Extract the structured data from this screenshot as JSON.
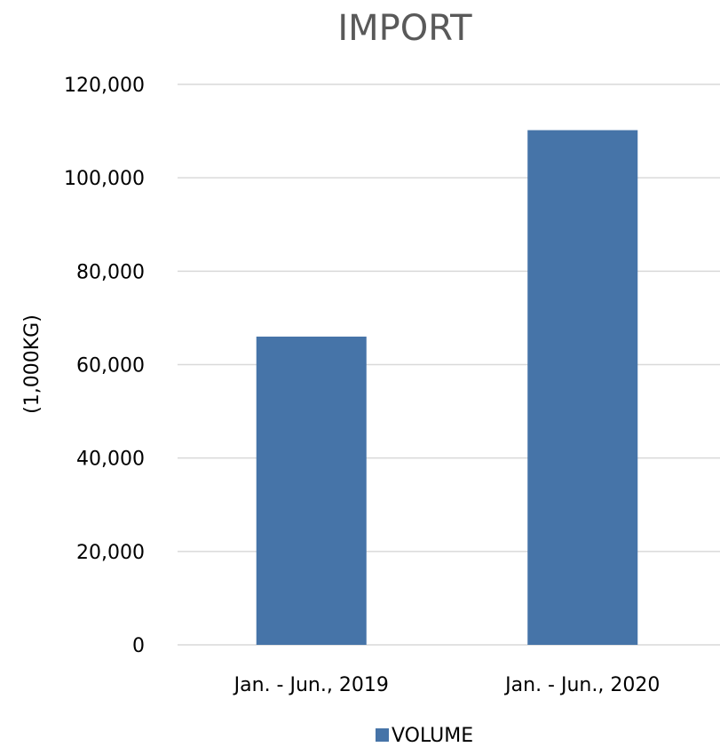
{
  "chart_data": {
    "type": "bar",
    "title": "IMPORT",
    "xlabel": "",
    "ylabel": "(1,000KG)",
    "categories": [
      "Jan. - Jun., 2019",
      "Jan. - Jun., 2020"
    ],
    "series": [
      {
        "name": "VOLUME",
        "values": [
          66000,
          110200
        ],
        "color": "#4674a8"
      }
    ],
    "ylim": [
      0,
      120000
    ],
    "yticks": [
      "0",
      "20,000",
      "40,000",
      "60,000",
      "80,000",
      "100,000",
      "120,000"
    ],
    "ytick_values": [
      0,
      20000,
      40000,
      60000,
      80000,
      100000,
      120000
    ],
    "grid": true,
    "legend": "bottom"
  }
}
